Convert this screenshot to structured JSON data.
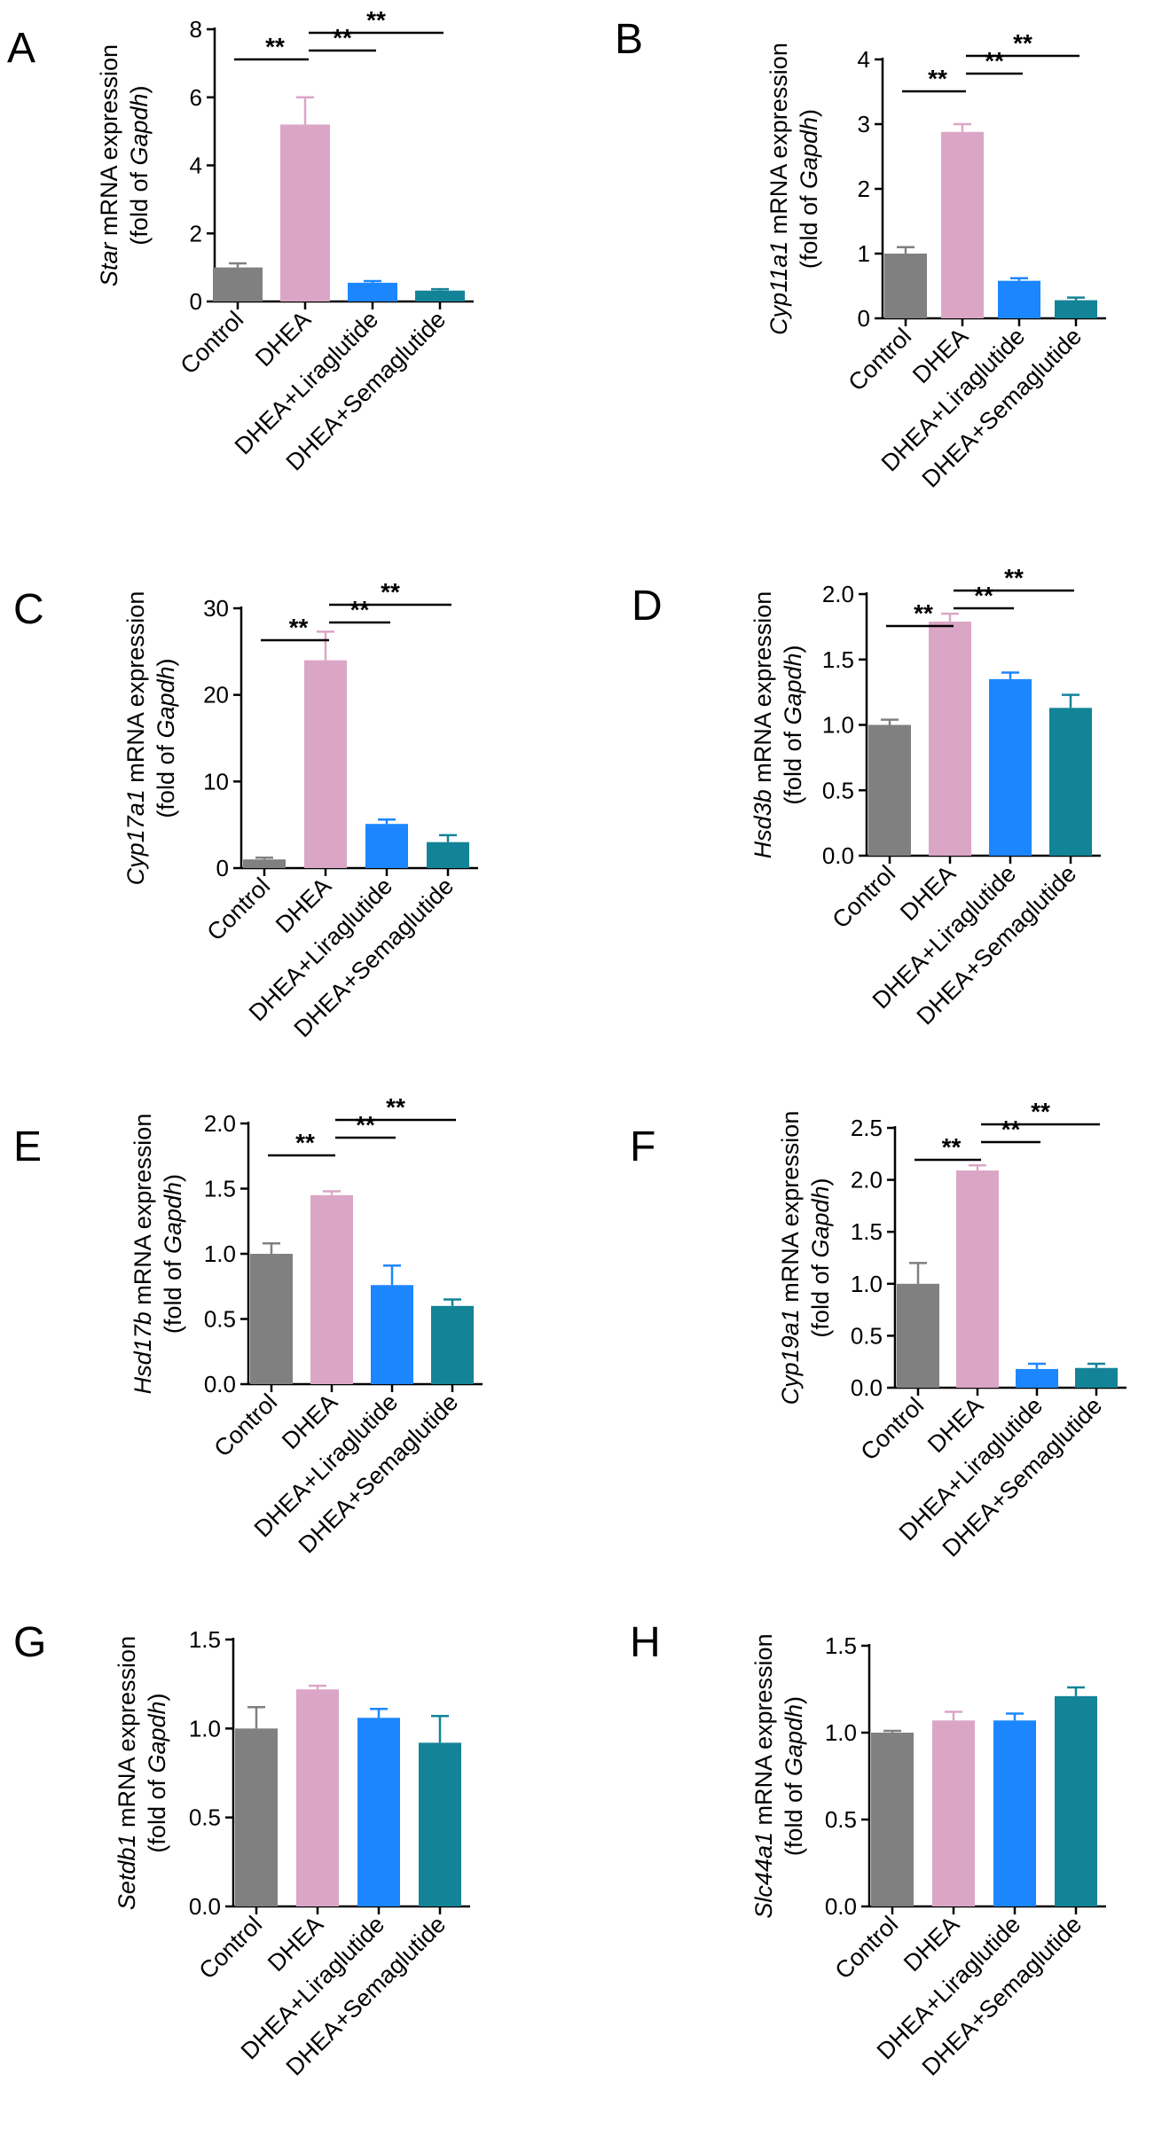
{
  "figure": {
    "categories": [
      "Control",
      "DHEA",
      "DHEA+Liraglutide",
      "DHEA+Semaglutide"
    ],
    "colors": [
      "#808080",
      "#dba6c6",
      "#1c86ff",
      "#138397"
    ],
    "ylabel_suffix": " mRNA expression",
    "ylabel_line2_prefix": "(fold of ",
    "ylabel_line2_gene": "Gapdh",
    "ylabel_line2_suffix": ")",
    "sig_symbol": "**"
  },
  "chart_data": [
    {
      "type": "bar",
      "panel": "A",
      "gene": "Star",
      "categories": [
        "Control",
        "DHEA",
        "DHEA+Liraglutide",
        "DHEA+Semaglutide"
      ],
      "values": [
        1.0,
        5.2,
        0.55,
        0.32
      ],
      "errors": [
        0.12,
        0.8,
        0.05,
        0.04
      ],
      "ylim": [
        0,
        8
      ],
      "yticks": [
        "0",
        "2",
        "4",
        "6",
        "8"
      ],
      "significance": [
        {
          "from": 0,
          "to": 1,
          "label": "**"
        },
        {
          "from": 1,
          "to": 2,
          "label": "**"
        },
        {
          "from": 1,
          "to": 3,
          "label": "**"
        }
      ]
    },
    {
      "type": "bar",
      "panel": "B",
      "gene": "Cyp11a1",
      "categories": [
        "Control",
        "DHEA",
        "DHEA+Liraglutide",
        "DHEA+Semaglutide"
      ],
      "values": [
        1.0,
        2.88,
        0.58,
        0.28
      ],
      "errors": [
        0.1,
        0.12,
        0.04,
        0.04
      ],
      "ylim": [
        0,
        4
      ],
      "yticks": [
        "0",
        "1",
        "2",
        "3",
        "4"
      ],
      "significance": [
        {
          "from": 0,
          "to": 1,
          "label": "**"
        },
        {
          "from": 1,
          "to": 2,
          "label": "**"
        },
        {
          "from": 1,
          "to": 3,
          "label": "**"
        }
      ]
    },
    {
      "type": "bar",
      "panel": "C",
      "gene": "Cyp17a1",
      "categories": [
        "Control",
        "DHEA",
        "DHEA+Liraglutide",
        "DHEA+Semaglutide"
      ],
      "values": [
        1.0,
        24.0,
        5.1,
        3.0
      ],
      "errors": [
        0.2,
        3.3,
        0.5,
        0.8
      ],
      "ylim": [
        0,
        30
      ],
      "yticks": [
        "0",
        "10",
        "20",
        "30"
      ],
      "significance": [
        {
          "from": 0,
          "to": 1,
          "label": "**"
        },
        {
          "from": 1,
          "to": 2,
          "label": "**"
        },
        {
          "from": 1,
          "to": 3,
          "label": "**"
        }
      ]
    },
    {
      "type": "bar",
      "panel": "D",
      "gene": "Hsd3b",
      "categories": [
        "Control",
        "DHEA",
        "DHEA+Liraglutide",
        "DHEA+Semaglutide"
      ],
      "values": [
        1.0,
        1.79,
        1.35,
        1.13
      ],
      "errors": [
        0.04,
        0.06,
        0.05,
        0.1
      ],
      "ylim": [
        0,
        2
      ],
      "yticks": [
        "0.0",
        "0.5",
        "1.0",
        "1.5",
        "2.0"
      ],
      "significance": [
        {
          "from": 0,
          "to": 1,
          "label": "**"
        },
        {
          "from": 1,
          "to": 2,
          "label": "**"
        },
        {
          "from": 1,
          "to": 3,
          "label": "**"
        }
      ]
    },
    {
      "type": "bar",
      "panel": "E",
      "gene": "Hsd17b",
      "categories": [
        "Control",
        "DHEA",
        "DHEA+Liraglutide",
        "DHEA+Semaglutide"
      ],
      "values": [
        1.0,
        1.45,
        0.76,
        0.6
      ],
      "errors": [
        0.08,
        0.03,
        0.15,
        0.05
      ],
      "ylim": [
        0,
        2
      ],
      "yticks": [
        "0.0",
        "0.5",
        "1.0",
        "1.5",
        "2.0"
      ],
      "significance": [
        {
          "from": 0,
          "to": 1,
          "label": "**"
        },
        {
          "from": 1,
          "to": 2,
          "label": "**"
        },
        {
          "from": 1,
          "to": 3,
          "label": "**"
        }
      ]
    },
    {
      "type": "bar",
      "panel": "F",
      "gene": "Cyp19a1",
      "categories": [
        "Control",
        "DHEA",
        "DHEA+Liraglutide",
        "DHEA+Semaglutide"
      ],
      "values": [
        1.0,
        2.09,
        0.18,
        0.19
      ],
      "errors": [
        0.2,
        0.05,
        0.05,
        0.04
      ],
      "ylim": [
        0,
        2.5
      ],
      "yticks": [
        "0.0",
        "0.5",
        "1.0",
        "1.5",
        "2.0",
        "2.5"
      ],
      "significance": [
        {
          "from": 0,
          "to": 1,
          "label": "**"
        },
        {
          "from": 1,
          "to": 2,
          "label": "**"
        },
        {
          "from": 1,
          "to": 3,
          "label": "**"
        }
      ]
    },
    {
      "type": "bar",
      "panel": "G",
      "gene": "Setdb1",
      "categories": [
        "Control",
        "DHEA",
        "DHEA+Liraglutide",
        "DHEA+Semaglutide"
      ],
      "values": [
        1.0,
        1.22,
        1.06,
        0.92
      ],
      "errors": [
        0.12,
        0.02,
        0.05,
        0.15
      ],
      "ylim": [
        0,
        1.5
      ],
      "yticks": [
        "0.0",
        "0.5",
        "1.0",
        "1.5"
      ],
      "significance": []
    },
    {
      "type": "bar",
      "panel": "H",
      "gene": "Slc44a1",
      "categories": [
        "Control",
        "DHEA",
        "DHEA+Liraglutide",
        "DHEA+Semaglutide"
      ],
      "values": [
        1.0,
        1.07,
        1.07,
        1.21
      ],
      "errors": [
        0.01,
        0.05,
        0.04,
        0.05
      ],
      "ylim": [
        0,
        1.5
      ],
      "yticks": [
        "0.0",
        "0.5",
        "1.0",
        "1.5"
      ],
      "significance": []
    }
  ]
}
